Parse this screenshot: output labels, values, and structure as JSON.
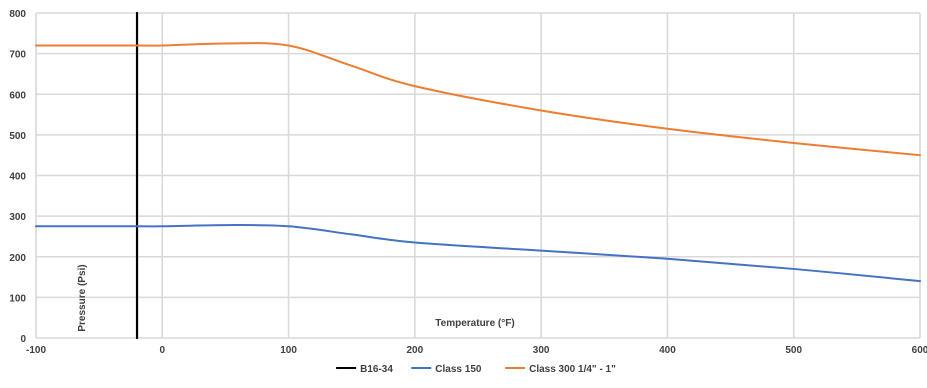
{
  "chart_data": {
    "type": "line",
    "title": "",
    "xlabel": "Temperature (°F)",
    "ylabel": "Pressure (Psi)",
    "xlim": [
      -100,
      600
    ],
    "ylim": [
      0,
      800
    ],
    "x_ticks": [
      -100,
      0,
      100,
      200,
      300,
      400,
      500,
      600
    ],
    "y_ticks": [
      0,
      100,
      200,
      300,
      400,
      500,
      600,
      700,
      800
    ],
    "x_tick_labels": [
      "-100",
      "0",
      "100",
      "200",
      "300",
      "400",
      "500",
      "600"
    ],
    "y_tick_labels": [
      "0",
      "100",
      "200",
      "300",
      "400",
      "500",
      "600",
      "700",
      "800"
    ],
    "grid": true,
    "legend_position": "bottom",
    "series": [
      {
        "name": "B16-34",
        "color": "#000000",
        "x": [
          -20,
          -20
        ],
        "y": [
          0,
          800
        ]
      },
      {
        "name": "Class 150",
        "color": "#4472C4",
        "x": [
          -100,
          -20,
          0,
          50,
          100,
          150,
          200,
          300,
          400,
          500,
          600
        ],
        "y": [
          275,
          275,
          275,
          278,
          275,
          255,
          235,
          215,
          195,
          170,
          140
        ]
      },
      {
        "name": "Class 300 1/4\" - 1\"",
        "color": "#ED7D31",
        "x": [
          -100,
          -20,
          0,
          50,
          100,
          150,
          200,
          300,
          400,
          500,
          600
        ],
        "y": [
          720,
          720,
          720,
          725,
          720,
          670,
          620,
          560,
          515,
          480,
          450
        ]
      }
    ]
  }
}
